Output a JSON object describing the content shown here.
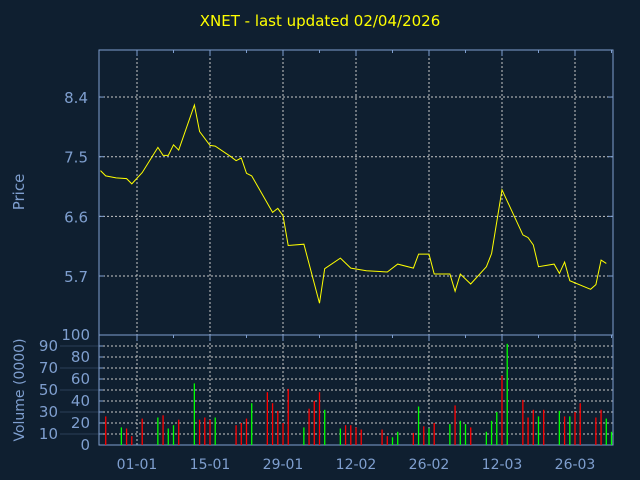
{
  "title": "XNET - last updated 02/04/2026",
  "colors": {
    "background": "#0f1f30",
    "axis": "#7f9fcf",
    "grid": "#c8c8c8",
    "price_line": "#ffff00",
    "volume_up": "#00ff00",
    "volume_down": "#ff0000",
    "title": "#ffff00"
  },
  "chart_data": [
    {
      "type": "line",
      "ylabel": "Price",
      "yticks": [
        "8.4",
        "7.5",
        "6.6",
        "5.7"
      ],
      "ylim": [
        4.81,
        9.11
      ],
      "xticks": [
        "01-01",
        "15-01",
        "29-01",
        "12-02",
        "26-02",
        "12-03",
        "26-03"
      ],
      "grid": true,
      "series": [
        {
          "x": [
            "2025-12-25",
            "2025-12-26",
            "2025-12-28",
            "2025-12-30",
            "2025-12-31",
            "2026-01-02",
            "2026-01-05",
            "2026-01-06",
            "2026-01-07",
            "2026-01-08",
            "2026-01-09",
            "2026-01-12",
            "2026-01-13",
            "2026-01-15",
            "2026-01-16",
            "2026-01-19",
            "2026-01-20",
            "2026-01-21",
            "2026-01-22",
            "2026-01-23",
            "2026-01-27",
            "2026-01-28",
            "2026-01-29",
            "2026-01-30",
            "2026-02-02",
            "2026-02-05",
            "2026-02-06",
            "2026-02-09",
            "2026-02-11",
            "2026-02-14",
            "2026-02-18",
            "2026-02-20",
            "2026-02-23",
            "2026-02-24",
            "2026-02-26",
            "2026-02-27",
            "2026-03-02",
            "2026-03-03",
            "2026-03-04",
            "2026-03-06",
            "2026-03-09",
            "2026-03-10",
            "2026-03-12",
            "2026-03-16",
            "2026-03-17",
            "2026-03-18",
            "2026-03-19",
            "2026-03-22",
            "2026-03-23",
            "2026-03-24",
            "2026-03-25",
            "2026-03-29",
            "2026-03-30",
            "2026-03-31",
            "2026-04-01"
          ],
          "y": [
            7.29,
            7.21,
            7.18,
            7.17,
            7.09,
            7.26,
            7.64,
            7.52,
            7.52,
            7.68,
            7.6,
            8.28,
            7.88,
            7.67,
            7.66,
            7.5,
            7.44,
            7.48,
            7.25,
            7.21,
            6.66,
            6.72,
            6.61,
            6.16,
            6.18,
            5.29,
            5.81,
            5.97,
            5.82,
            5.78,
            5.76,
            5.88,
            5.82,
            6.03,
            6.03,
            5.73,
            5.73,
            5.47,
            5.73,
            5.58,
            5.84,
            6.04,
            7.0,
            6.32,
            6.28,
            6.17,
            5.84,
            5.88,
            5.74,
            5.91,
            5.63,
            5.5,
            5.57,
            5.94,
            5.89
          ]
        }
      ]
    },
    {
      "type": "bar",
      "ylabel": "Volume (0000)",
      "yticks": [
        "0",
        "10",
        "20",
        "30",
        "40",
        "50",
        "60",
        "70",
        "80",
        "90",
        "100"
      ],
      "ylim": [
        0,
        100
      ],
      "xticks": [
        "01-01",
        "15-01",
        "29-01",
        "12-02",
        "26-02",
        "12-03",
        "26-03"
      ],
      "grid": true,
      "bars": [
        {
          "date": "2025-12-26",
          "value": 26,
          "dir": "down"
        },
        {
          "date": "2025-12-29",
          "value": 16,
          "dir": "up"
        },
        {
          "date": "2025-12-30",
          "value": 15,
          "dir": "down"
        },
        {
          "date": "2025-12-31",
          "value": 8,
          "dir": "down"
        },
        {
          "date": "2026-01-02",
          "value": 24,
          "dir": "down"
        },
        {
          "date": "2026-01-05",
          "value": 25,
          "dir": "up"
        },
        {
          "date": "2026-01-06",
          "value": 27,
          "dir": "down"
        },
        {
          "date": "2026-01-07",
          "value": 15,
          "dir": "up"
        },
        {
          "date": "2026-01-08",
          "value": 18,
          "dir": "up"
        },
        {
          "date": "2026-01-09",
          "value": 23,
          "dir": "down"
        },
        {
          "date": "2026-01-12",
          "value": 56,
          "dir": "up"
        },
        {
          "date": "2026-01-13",
          "value": 23,
          "dir": "down"
        },
        {
          "date": "2026-01-14",
          "value": 25,
          "dir": "down"
        },
        {
          "date": "2026-01-15",
          "value": 23,
          "dir": "down"
        },
        {
          "date": "2026-01-16",
          "value": 25,
          "dir": "up"
        },
        {
          "date": "2026-01-20",
          "value": 18,
          "dir": "down"
        },
        {
          "date": "2026-01-21",
          "value": 20,
          "dir": "down"
        },
        {
          "date": "2026-01-22",
          "value": 24,
          "dir": "down"
        },
        {
          "date": "2026-01-23",
          "value": 38,
          "dir": "up"
        },
        {
          "date": "2026-01-26",
          "value": 48,
          "dir": "down"
        },
        {
          "date": "2026-01-27",
          "value": 38,
          "dir": "down"
        },
        {
          "date": "2026-01-28",
          "value": 31,
          "dir": "down"
        },
        {
          "date": "2026-01-29",
          "value": 20,
          "dir": "down"
        },
        {
          "date": "2026-01-30",
          "value": 51,
          "dir": "down"
        },
        {
          "date": "2026-02-02",
          "value": 16,
          "dir": "up"
        },
        {
          "date": "2026-02-03",
          "value": 33,
          "dir": "down"
        },
        {
          "date": "2026-02-04",
          "value": 40,
          "dir": "down"
        },
        {
          "date": "2026-02-05",
          "value": 48,
          "dir": "down"
        },
        {
          "date": "2026-02-06",
          "value": 32,
          "dir": "up"
        },
        {
          "date": "2026-02-09",
          "value": 15,
          "dir": "up"
        },
        {
          "date": "2026-02-10",
          "value": 18,
          "dir": "down"
        },
        {
          "date": "2026-02-11",
          "value": 18,
          "dir": "down"
        },
        {
          "date": "2026-02-12",
          "value": 16,
          "dir": "down"
        },
        {
          "date": "2026-02-13",
          "value": 14,
          "dir": "down"
        },
        {
          "date": "2026-02-17",
          "value": 14,
          "dir": "down"
        },
        {
          "date": "2026-02-18",
          "value": 8,
          "dir": "down"
        },
        {
          "date": "2026-02-19",
          "value": 7,
          "dir": "up"
        },
        {
          "date": "2026-02-20",
          "value": 12,
          "dir": "up"
        },
        {
          "date": "2026-02-23",
          "value": 11,
          "dir": "down"
        },
        {
          "date": "2026-02-24",
          "value": 35,
          "dir": "up"
        },
        {
          "date": "2026-02-25",
          "value": 17,
          "dir": "down"
        },
        {
          "date": "2026-02-26",
          "value": 15,
          "dir": "up"
        },
        {
          "date": "2026-02-27",
          "value": 20,
          "dir": "down"
        },
        {
          "date": "2026-03-02",
          "value": 19,
          "dir": "up"
        },
        {
          "date": "2026-03-03",
          "value": 36,
          "dir": "down"
        },
        {
          "date": "2026-03-04",
          "value": 22,
          "dir": "up"
        },
        {
          "date": "2026-03-05",
          "value": 19,
          "dir": "up"
        },
        {
          "date": "2026-03-06",
          "value": 16,
          "dir": "down"
        },
        {
          "date": "2026-03-09",
          "value": 12,
          "dir": "up"
        },
        {
          "date": "2026-03-10",
          "value": 22,
          "dir": "up"
        },
        {
          "date": "2026-03-11",
          "value": 30,
          "dir": "up"
        },
        {
          "date": "2026-03-12",
          "value": 63,
          "dir": "down"
        },
        {
          "date": "2026-03-13",
          "value": 92,
          "dir": "up"
        },
        {
          "date": "2026-03-16",
          "value": 41,
          "dir": "down"
        },
        {
          "date": "2026-03-17",
          "value": 25,
          "dir": "down"
        },
        {
          "date": "2026-03-18",
          "value": 32,
          "dir": "down"
        },
        {
          "date": "2026-03-19",
          "value": 26,
          "dir": "up"
        },
        {
          "date": "2026-03-20",
          "value": 32,
          "dir": "down"
        },
        {
          "date": "2026-03-23",
          "value": 31,
          "dir": "up"
        },
        {
          "date": "2026-03-24",
          "value": 26,
          "dir": "down"
        },
        {
          "date": "2026-03-25",
          "value": 26,
          "dir": "up"
        },
        {
          "date": "2026-03-26",
          "value": 30,
          "dir": "down"
        },
        {
          "date": "2026-03-27",
          "value": 38,
          "dir": "down"
        },
        {
          "date": "2026-03-30",
          "value": 25,
          "dir": "down"
        },
        {
          "date": "2026-03-31",
          "value": 32,
          "dir": "down"
        },
        {
          "date": "2026-04-01",
          "value": 24,
          "dir": "up"
        },
        {
          "date": "2026-04-02",
          "value": 12,
          "dir": "up"
        }
      ]
    }
  ]
}
